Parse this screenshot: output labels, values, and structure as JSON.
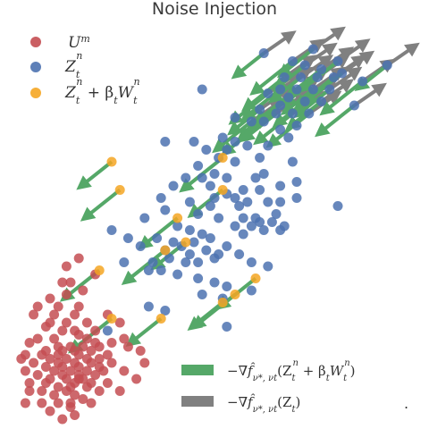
{
  "chart_data": {
    "type": "scatter",
    "title": "Noise Injection",
    "xlabel": "",
    "ylabel": "",
    "xlim": [
      0,
      1
    ],
    "ylim": [
      0,
      1
    ],
    "grid": false,
    "axes_visible": false,
    "legend_top": {
      "placement": "top-left",
      "entries": [
        {
          "key": "U",
          "sup": "m",
          "color": "#c44e52"
        },
        {
          "key": "Z",
          "sub": "t",
          "sup": "n",
          "color": "#4c72b0"
        },
        {
          "key": "Z",
          "sub": "t",
          "sup": "n",
          "extra": " + β",
          "extra_sub": "t",
          "extra2": "W",
          "extra2_sub": "t",
          "extra2_sup": "n",
          "color": "#f5a623"
        }
      ]
    },
    "legend_bottom": {
      "placement": "bottom-right",
      "entries": [
        {
          "color": "#55a868",
          "prefix": "−∇",
          "f": "f̂",
          "sub": "ν*, νt",
          "arg": "(Z",
          "arg_sub": "t",
          "arg_sup": "n",
          "arg_tail": " + β",
          "arg_tail_sub": "t",
          "arg_tail2": "W",
          "arg_tail2_sub": "t",
          "arg_tail2_sup": "n",
          "close": ")"
        },
        {
          "color": "#808080",
          "prefix": "−∇",
          "f": "f̂",
          "sub": "ν*, νt",
          "arg": "(Z",
          "arg_sub": "t",
          "close": ")"
        }
      ],
      "trailing": "."
    },
    "series": [
      {
        "name": "U^m",
        "color": "#c44e52",
        "points": [
          [
            0.14,
            0.33
          ],
          [
            0.12,
            0.3
          ],
          [
            0.17,
            0.3
          ],
          [
            0.11,
            0.28
          ],
          [
            0.14,
            0.26
          ],
          [
            0.19,
            0.26
          ],
          [
            0.09,
            0.25
          ],
          [
            0.16,
            0.24
          ],
          [
            0.21,
            0.24
          ],
          [
            0.07,
            0.22
          ],
          [
            0.11,
            0.22
          ],
          [
            0.19,
            0.22
          ],
          [
            0.12,
            0.2
          ],
          [
            0.15,
            0.2
          ],
          [
            0.18,
            0.2
          ],
          [
            0.22,
            0.2
          ],
          [
            0.05,
            0.21
          ],
          [
            0.25,
            0.21
          ],
          [
            0.09,
            0.19
          ],
          [
            0.13,
            0.19
          ],
          [
            0.16,
            0.19
          ],
          [
            0.2,
            0.19
          ],
          [
            0.29,
            0.2
          ],
          [
            0.32,
            0.19
          ],
          [
            0.04,
            0.18
          ],
          [
            0.08,
            0.18
          ],
          [
            0.12,
            0.18
          ],
          [
            0.17,
            0.18
          ],
          [
            0.19,
            0.17
          ],
          [
            0.24,
            0.18
          ],
          [
            0.03,
            0.17
          ],
          [
            0.1,
            0.17
          ],
          [
            0.14,
            0.17
          ],
          [
            0.22,
            0.17
          ],
          [
            0.06,
            0.16
          ],
          [
            0.12,
            0.16
          ],
          [
            0.16,
            0.16
          ],
          [
            0.2,
            0.16
          ],
          [
            0.25,
            0.16
          ],
          [
            0.33,
            0.16
          ],
          [
            0.09,
            0.15
          ],
          [
            0.13,
            0.15
          ],
          [
            0.17,
            0.15
          ],
          [
            0.22,
            0.15
          ],
          [
            0.04,
            0.14
          ],
          [
            0.11,
            0.14
          ],
          [
            0.15,
            0.14
          ],
          [
            0.19,
            0.14
          ],
          [
            0.28,
            0.14
          ],
          [
            0.07,
            0.13
          ],
          [
            0.13,
            0.13
          ],
          [
            0.17,
            0.13
          ],
          [
            0.21,
            0.13
          ],
          [
            0.1,
            0.12
          ],
          [
            0.14,
            0.12
          ],
          [
            0.18,
            0.12
          ],
          [
            0.05,
            0.11
          ],
          [
            0.09,
            0.11
          ],
          [
            0.16,
            0.11
          ],
          [
            0.2,
            0.11
          ],
          [
            0.24,
            0.11
          ],
          [
            0.31,
            0.12
          ],
          [
            0.12,
            0.1
          ],
          [
            0.15,
            0.1
          ],
          [
            0.19,
            0.1
          ],
          [
            0.08,
            0.09
          ],
          [
            0.14,
            0.09
          ],
          [
            0.22,
            0.09
          ],
          [
            0.27,
            0.09
          ],
          [
            0.11,
            0.08
          ],
          [
            0.16,
            0.08
          ],
          [
            0.18,
            0.07
          ],
          [
            0.04,
            0.06
          ],
          [
            0.08,
            0.06
          ],
          [
            0.12,
            0.06
          ],
          [
            0.15,
            0.06
          ],
          [
            0.2,
            0.06
          ],
          [
            0.1,
            0.04
          ],
          [
            0.16,
            0.03
          ],
          [
            0.13,
            0.02
          ],
          [
            0.15,
            0.36
          ],
          [
            0.21,
            0.38
          ],
          [
            0.14,
            0.4
          ],
          [
            0.17,
            0.42
          ],
          [
            0.07,
            0.3
          ],
          [
            0.24,
            0.28
          ],
          [
            0.27,
            0.26
          ],
          [
            0.28,
            0.22
          ],
          [
            0.1,
            0.26
          ],
          [
            0.13,
            0.24
          ],
          [
            0.06,
            0.28
          ],
          [
            0.1,
            0.32
          ],
          [
            0.13,
            0.36
          ],
          [
            0.18,
            0.34
          ],
          [
            0.16,
            0.28
          ],
          [
            0.17,
            0.23
          ],
          [
            0.21,
            0.21
          ],
          [
            0.23,
            0.14
          ],
          [
            0.15,
            0.05
          ],
          [
            0.17,
            0.12
          ],
          [
            0.05,
            0.09
          ]
        ]
      },
      {
        "name": "Z_t^n",
        "color": "#4c72b0",
        "points": [
          [
            0.62,
            0.93
          ],
          [
            0.74,
            0.94
          ],
          [
            0.8,
            0.91
          ],
          [
            0.69,
            0.91
          ],
          [
            0.72,
            0.9
          ],
          [
            0.76,
            0.89
          ],
          [
            0.81,
            0.88
          ],
          [
            0.67,
            0.87
          ],
          [
            0.71,
            0.87
          ],
          [
            0.75,
            0.87
          ],
          [
            0.79,
            0.87
          ],
          [
            0.86,
            0.86
          ],
          [
            0.92,
            0.9
          ],
          [
            0.47,
            0.84
          ],
          [
            0.66,
            0.84
          ],
          [
            0.7,
            0.84
          ],
          [
            0.74,
            0.84
          ],
          [
            0.78,
            0.84
          ],
          [
            0.63,
            0.83
          ],
          [
            0.68,
            0.82
          ],
          [
            0.72,
            0.81
          ],
          [
            0.76,
            0.81
          ],
          [
            0.84,
            0.8
          ],
          [
            0.66,
            0.8
          ],
          [
            0.61,
            0.79
          ],
          [
            0.65,
            0.78
          ],
          [
            0.69,
            0.78
          ],
          [
            0.73,
            0.78
          ],
          [
            0.55,
            0.77
          ],
          [
            0.7,
            0.75
          ],
          [
            0.59,
            0.76
          ],
          [
            0.62,
            0.76
          ],
          [
            0.66,
            0.74
          ],
          [
            0.38,
            0.71
          ],
          [
            0.45,
            0.71
          ],
          [
            0.52,
            0.72
          ],
          [
            0.55,
            0.71
          ],
          [
            0.48,
            0.69
          ],
          [
            0.53,
            0.69
          ],
          [
            0.58,
            0.7
          ],
          [
            0.63,
            0.7
          ],
          [
            0.68,
            0.72
          ],
          [
            0.51,
            0.67
          ],
          [
            0.55,
            0.66
          ],
          [
            0.61,
            0.67
          ],
          [
            0.46,
            0.65
          ],
          [
            0.43,
            0.62
          ],
          [
            0.47,
            0.62
          ],
          [
            0.5,
            0.63
          ],
          [
            0.53,
            0.62
          ],
          [
            0.6,
            0.62
          ],
          [
            0.62,
            0.63
          ],
          [
            0.69,
            0.66
          ],
          [
            0.4,
            0.6
          ],
          [
            0.49,
            0.6
          ],
          [
            0.57,
            0.59
          ],
          [
            0.61,
            0.59
          ],
          [
            0.66,
            0.6
          ],
          [
            0.7,
            0.61
          ],
          [
            0.37,
            0.57
          ],
          [
            0.44,
            0.56
          ],
          [
            0.5,
            0.57
          ],
          [
            0.53,
            0.58
          ],
          [
            0.55,
            0.57
          ],
          [
            0.58,
            0.56
          ],
          [
            0.63,
            0.56
          ],
          [
            0.66,
            0.56
          ],
          [
            0.38,
            0.54
          ],
          [
            0.49,
            0.55
          ],
          [
            0.56,
            0.55
          ],
          [
            0.65,
            0.53
          ],
          [
            0.7,
            0.57
          ],
          [
            0.8,
            0.55
          ],
          [
            0.33,
            0.52
          ],
          [
            0.46,
            0.53
          ],
          [
            0.51,
            0.52
          ],
          [
            0.57,
            0.52
          ],
          [
            0.6,
            0.52
          ],
          [
            0.64,
            0.51
          ],
          [
            0.25,
            0.49
          ],
          [
            0.41,
            0.5
          ],
          [
            0.44,
            0.49
          ],
          [
            0.47,
            0.48
          ],
          [
            0.55,
            0.5
          ],
          [
            0.59,
            0.5
          ],
          [
            0.67,
            0.5
          ],
          [
            0.61,
            0.51
          ],
          [
            0.29,
            0.47
          ],
          [
            0.36,
            0.47
          ],
          [
            0.4,
            0.46
          ],
          [
            0.45,
            0.46
          ],
          [
            0.49,
            0.47
          ],
          [
            0.53,
            0.45
          ],
          [
            0.57,
            0.48
          ],
          [
            0.62,
            0.49
          ],
          [
            0.66,
            0.49
          ],
          [
            0.32,
            0.45
          ],
          [
            0.38,
            0.44
          ],
          [
            0.42,
            0.45
          ],
          [
            0.44,
            0.43
          ],
          [
            0.48,
            0.44
          ],
          [
            0.51,
            0.43
          ],
          [
            0.56,
            0.43
          ],
          [
            0.28,
            0.41
          ],
          [
            0.35,
            0.41
          ],
          [
            0.39,
            0.42
          ],
          [
            0.43,
            0.41
          ],
          [
            0.46,
            0.41
          ],
          [
            0.5,
            0.42
          ],
          [
            0.59,
            0.41
          ],
          [
            0.63,
            0.4
          ],
          [
            0.34,
            0.39
          ],
          [
            0.37,
            0.39
          ],
          [
            0.41,
            0.38
          ],
          [
            0.46,
            0.37
          ],
          [
            0.5,
            0.36
          ],
          [
            0.53,
            0.35
          ],
          [
            0.59,
            0.34
          ],
          [
            0.34,
            0.3
          ],
          [
            0.47,
            0.33
          ],
          [
            0.52,
            0.32
          ],
          [
            0.38,
            0.29
          ],
          [
            0.53,
            0.25
          ],
          [
            0.24,
            0.24
          ]
        ]
      },
      {
        "name": "Z_t^n + β_t W_t^n",
        "color": "#f5a623",
        "points": [
          [
            0.25,
            0.66
          ],
          [
            0.27,
            0.59
          ],
          [
            0.52,
            0.67
          ],
          [
            0.52,
            0.59
          ],
          [
            0.41,
            0.52
          ],
          [
            0.38,
            0.44
          ],
          [
            0.43,
            0.46
          ],
          [
            0.6,
            0.37
          ],
          [
            0.55,
            0.33
          ],
          [
            0.52,
            0.31
          ],
          [
            0.22,
            0.39
          ],
          [
            0.25,
            0.27
          ],
          [
            0.37,
            0.27
          ]
        ]
      }
    ],
    "arrows": {
      "green_points": "Z_t^n + β_t W_t^n and upper-right Z_t^n",
      "gray_points": "upper-right Z_t^n"
    }
  }
}
